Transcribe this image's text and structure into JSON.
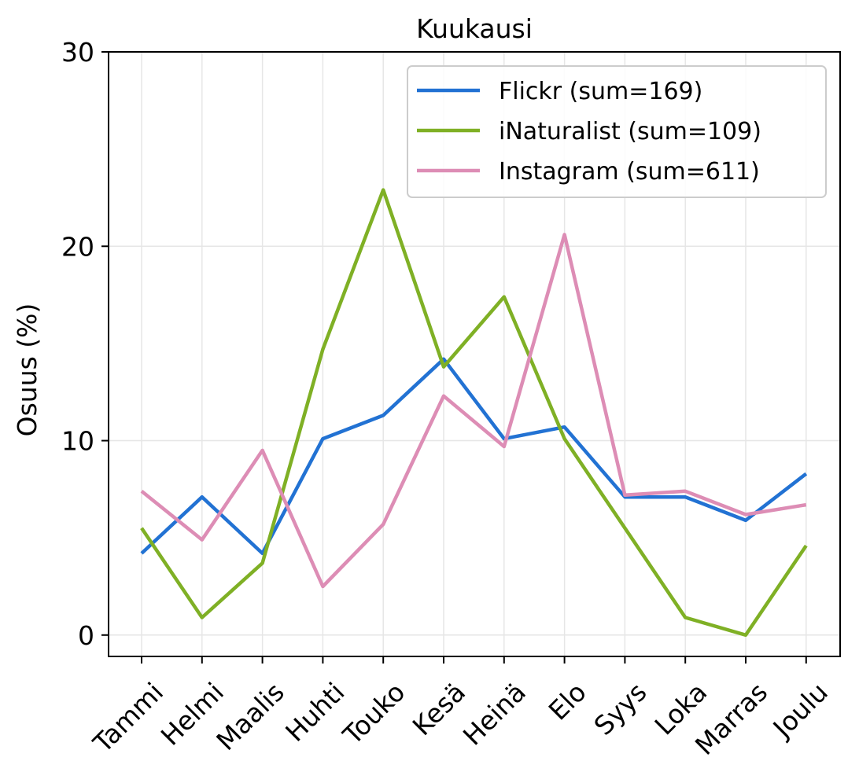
{
  "chart_data": {
    "type": "line",
    "title": "Kuukausi",
    "xlabel": "",
    "ylabel": "Osuus (%)",
    "categories": [
      "Tammi",
      "Helmi",
      "Maalis",
      "Huhti",
      "Touko",
      "Kesä",
      "Heinä",
      "Elo",
      "Syys",
      "Loka",
      "Marras",
      "Joulu"
    ],
    "ylim": [
      -1.1,
      30
    ],
    "yticks": [
      0,
      10,
      20,
      30
    ],
    "grid": true,
    "legend_position": "top-right",
    "series": [
      {
        "name": "Flickr (sum=169)",
        "color": "#2272d3",
        "values": [
          4.2,
          7.1,
          4.2,
          10.1,
          11.3,
          14.2,
          10.1,
          10.7,
          7.1,
          7.1,
          5.9,
          8.3
        ]
      },
      {
        "name": "iNaturalist (sum=109)",
        "color": "#7fb025",
        "values": [
          5.5,
          0.9,
          3.7,
          14.7,
          22.9,
          13.8,
          17.4,
          10.1,
          5.5,
          0.9,
          0.0,
          4.6
        ]
      },
      {
        "name": "Instagram (sum=611)",
        "color": "#dd8db5",
        "values": [
          7.4,
          4.9,
          9.5,
          2.5,
          5.7,
          12.3,
          9.7,
          20.6,
          7.2,
          7.4,
          6.2,
          6.7
        ]
      }
    ]
  }
}
